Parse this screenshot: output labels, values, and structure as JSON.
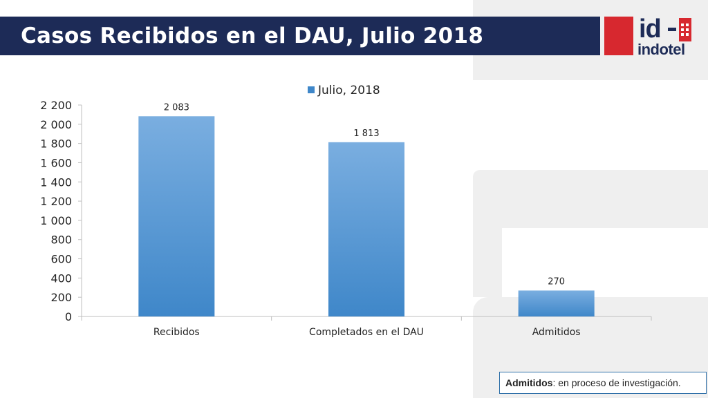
{
  "header": {
    "title": "Casos Recibidos en el DAU, Julio 2018"
  },
  "logo": {
    "id_text": "id",
    "word": "indotel",
    "colors": {
      "red": "#d7282f",
      "navy": "#1d2b57"
    }
  },
  "note": {
    "bold": "Admitidos",
    "rest": ": en proceso de investigación."
  },
  "colors": {
    "bar_top": "#7aaee0",
    "bar_bottom": "#3f87c9",
    "axis": "#bfbfbf",
    "text": "#222222"
  },
  "chart_data": {
    "type": "bar",
    "categories": [
      "Recibidos",
      "Completados en el DAU",
      "Admitidos"
    ],
    "series": [
      {
        "name": "Julio, 2018",
        "values": [
          2083,
          1813,
          270
        ]
      }
    ],
    "value_labels": [
      "2 083",
      "1 813",
      "270"
    ],
    "yticks": [
      0,
      200,
      400,
      600,
      800,
      1000,
      1200,
      1400,
      1600,
      1800,
      2000,
      2200
    ],
    "ytick_labels": [
      "0",
      "200",
      "400",
      "600",
      "800",
      "1 000",
      "1 200",
      "1 400",
      "1 600",
      "1 800",
      "2 000",
      "2 200"
    ],
    "ylim": [
      0,
      2200
    ],
    "title": "",
    "xlabel": "",
    "ylabel": "",
    "grid": false,
    "legend_position": "top"
  }
}
